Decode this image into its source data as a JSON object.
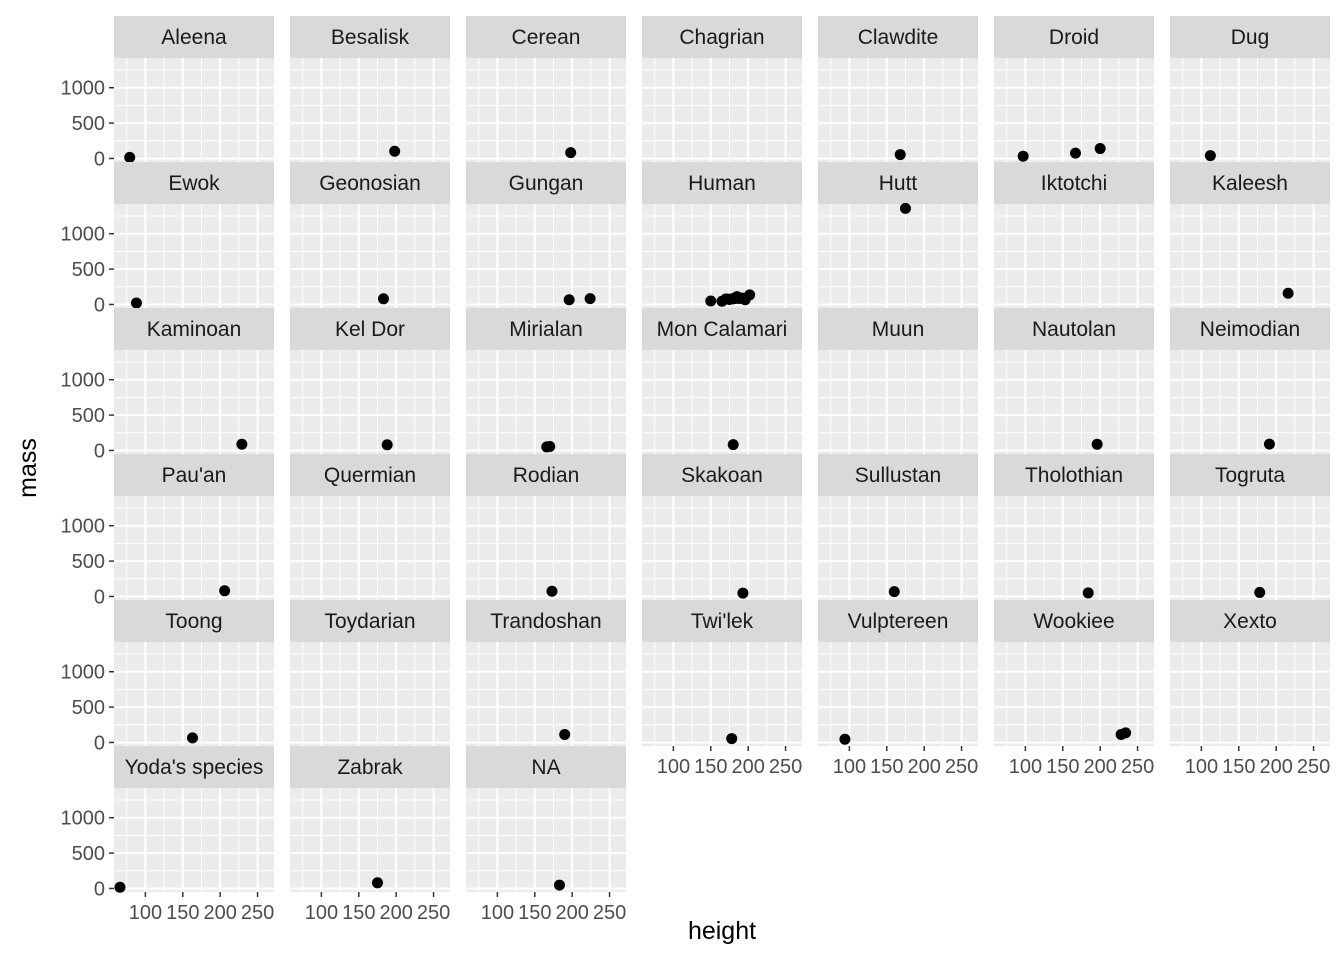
{
  "chart_data": {
    "type": "scatter",
    "faceted": true,
    "xlabel": "height",
    "ylabel": "mass",
    "xlim": [
      58,
      272
    ],
    "ylim": [
      -50,
      1420
    ],
    "x_ticks": [
      100,
      150,
      200,
      250
    ],
    "x_tick_labels": [
      "100",
      "150",
      "200",
      "250"
    ],
    "y_ticks": [
      0,
      500,
      1000
    ],
    "y_tick_labels": [
      "0",
      "500",
      "1000"
    ],
    "grid": true,
    "panel_background": "#ebebeb",
    "strip_background": "#d9d9d9",
    "point_color": "#000000",
    "facets": [
      {
        "label": "Aleena",
        "points": [
          [
            79,
            15
          ]
        ]
      },
      {
        "label": "Besalisk",
        "points": [
          [
            198,
            102
          ]
        ]
      },
      {
        "label": "Cerean",
        "points": [
          [
            198,
            82
          ]
        ]
      },
      {
        "label": "Chagrian",
        "points": []
      },
      {
        "label": "Clawdite",
        "points": [
          [
            168,
            55
          ]
        ]
      },
      {
        "label": "Droid",
        "points": [
          [
            97,
            32
          ],
          [
            167,
            75
          ],
          [
            200,
            140
          ]
        ]
      },
      {
        "label": "Dug",
        "points": [
          [
            112,
            40
          ]
        ]
      },
      {
        "label": "Ewok",
        "points": [
          [
            88,
            20
          ]
        ]
      },
      {
        "label": "Geonosian",
        "points": [
          [
            183,
            80
          ]
        ]
      },
      {
        "label": "Gungan",
        "points": [
          [
            196,
            66
          ],
          [
            224,
            82
          ]
        ]
      },
      {
        "label": "Human",
        "points": [
          [
            150,
            49
          ],
          [
            165,
            45
          ],
          [
            170,
            77
          ],
          [
            172,
            77
          ],
          [
            175,
            70
          ],
          [
            178,
            79
          ],
          [
            180,
            80
          ],
          [
            182,
            90
          ],
          [
            183,
            84
          ],
          [
            185,
            110
          ],
          [
            188,
            84
          ],
          [
            190,
            90
          ],
          [
            193,
            89
          ],
          [
            196,
            66
          ],
          [
            202,
            136
          ]
        ]
      },
      {
        "label": "Hutt",
        "points": [
          [
            175,
            1358
          ]
        ]
      },
      {
        "label": "Iktotchi",
        "points": []
      },
      {
        "label": "Kaleesh",
        "points": [
          [
            216,
            159
          ]
        ]
      },
      {
        "label": "Kaminoan",
        "points": [
          [
            229,
            88
          ]
        ]
      },
      {
        "label": "Kel Dor",
        "points": [
          [
            188,
            80
          ]
        ]
      },
      {
        "label": "Mirialan",
        "points": [
          [
            166,
            50
          ],
          [
            170,
            56
          ]
        ]
      },
      {
        "label": "Mon Calamari",
        "points": [
          [
            180,
            83
          ]
        ]
      },
      {
        "label": "Muun",
        "points": []
      },
      {
        "label": "Nautolan",
        "points": [
          [
            196,
            87
          ]
        ]
      },
      {
        "label": "Neimodian",
        "points": [
          [
            191,
            90
          ]
        ]
      },
      {
        "label": "Pau'an",
        "points": [
          [
            206,
            80
          ]
        ]
      },
      {
        "label": "Quermian",
        "points": []
      },
      {
        "label": "Rodian",
        "points": [
          [
            173,
            74
          ]
        ]
      },
      {
        "label": "Skakoan",
        "points": [
          [
            193,
            48
          ]
        ]
      },
      {
        "label": "Sullustan",
        "points": [
          [
            160,
            68
          ]
        ]
      },
      {
        "label": "Tholothian",
        "points": [
          [
            184,
            50
          ]
        ]
      },
      {
        "label": "Togruta",
        "points": [
          [
            178,
            57
          ]
        ]
      },
      {
        "label": "Toong",
        "points": [
          [
            163,
            65
          ]
        ]
      },
      {
        "label": "Toydarian",
        "points": []
      },
      {
        "label": "Trandoshan",
        "points": [
          [
            190,
            113
          ]
        ]
      },
      {
        "label": "Twi'lek",
        "points": [
          [
            178,
            55
          ]
        ]
      },
      {
        "label": "Vulptereen",
        "points": [
          [
            94,
            45
          ]
        ]
      },
      {
        "label": "Wookiee",
        "points": [
          [
            228,
            112
          ],
          [
            234,
            136
          ]
        ]
      },
      {
        "label": "Xexto",
        "points": []
      },
      {
        "label": "Yoda's species",
        "points": [
          [
            66,
            17
          ]
        ]
      },
      {
        "label": "Zabrak",
        "points": [
          [
            175,
            80
          ]
        ]
      },
      {
        "label": "NA",
        "points": [
          [
            183,
            48
          ]
        ]
      }
    ]
  }
}
